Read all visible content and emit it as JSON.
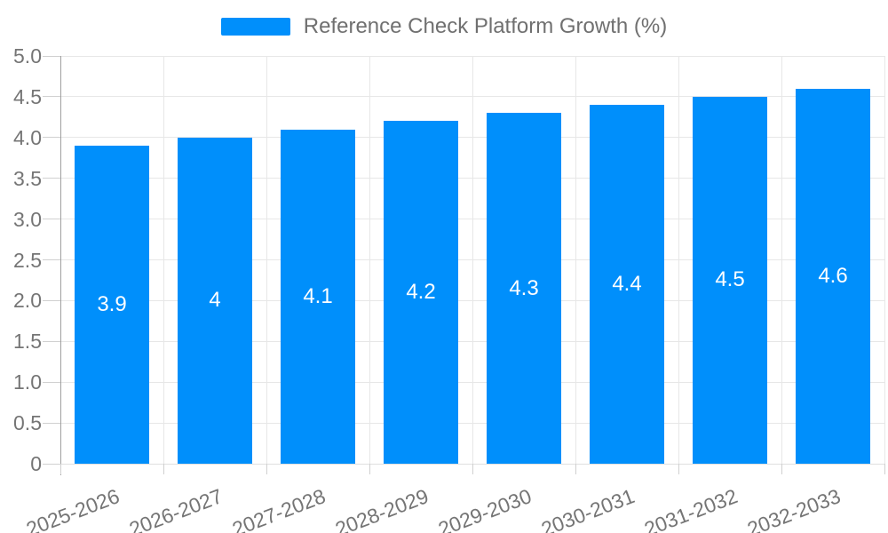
{
  "chart_data": {
    "type": "bar",
    "title": "Reference Check Platform Growth (%)",
    "legend_position": "top",
    "categories": [
      "2025-2026",
      "2026-2027",
      "2027-2028",
      "2028-2029",
      "2029-2030",
      "2030-2031",
      "2031-2032",
      "2032-2033"
    ],
    "values": [
      3.9,
      4,
      4.1,
      4.2,
      4.3,
      4.4,
      4.5,
      4.6
    ],
    "bar_labels": [
      "3.9",
      "4",
      "4.1",
      "4.2",
      "4.3",
      "4.4",
      "4.5",
      "4.6"
    ],
    "xlabel": "",
    "ylabel": "",
    "ylim": [
      0,
      5
    ],
    "y_tick_step": 0.5,
    "y_tick_labels": [
      "0",
      "0.5",
      "1.0",
      "1.5",
      "2.0",
      "2.5",
      "3.0",
      "3.5",
      "4.0",
      "4.5",
      "5.0"
    ],
    "grid": {
      "horizontal": true,
      "vertical": true
    },
    "colors": {
      "bar": "#008FFB",
      "grid_line": "#e7e7e7",
      "axis_line": "#a0a0a0",
      "bottom_axis_line": "#e0e0e0",
      "tick": "#d0d0d0",
      "axis_text": "#757575",
      "legend_text": "#707070",
      "data_label_text": "#ffffff"
    }
  }
}
